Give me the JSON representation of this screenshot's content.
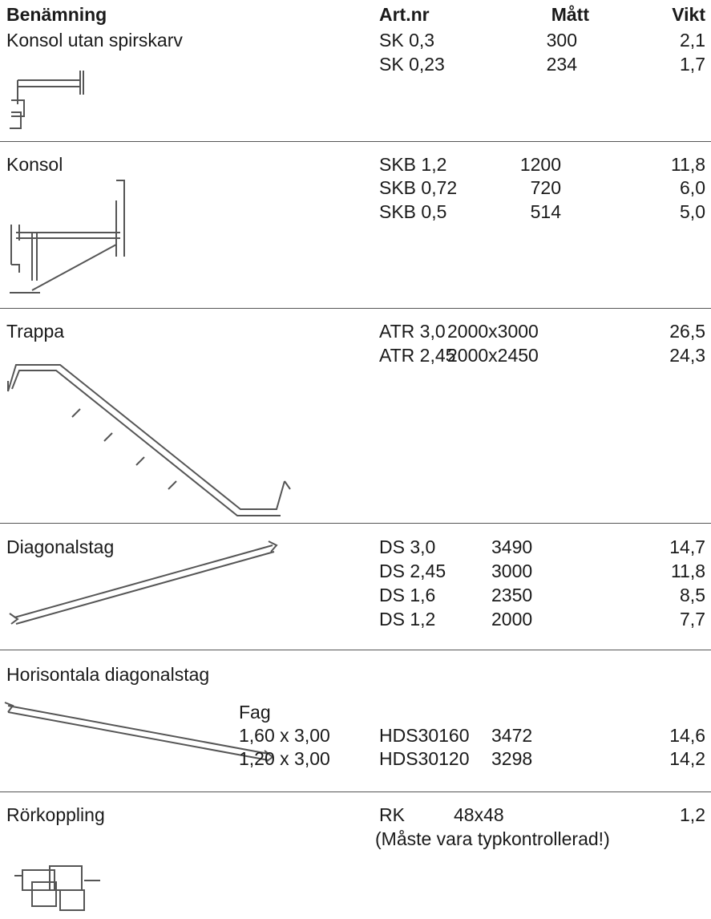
{
  "header": {
    "columns": [
      "Benämning",
      "Art.nr",
      "Mått",
      "Vikt"
    ]
  },
  "sections": [
    {
      "name": "Konsol utan spirskarv",
      "rows": [
        [
          "SK 0,3",
          "300",
          "2,1"
        ],
        [
          "SK 0,23",
          "234",
          "1,7"
        ]
      ]
    },
    {
      "name": "Konsol",
      "rows": [
        [
          "SKB 1,2",
          "1200",
          "11,8"
        ],
        [
          "SKB 0,72",
          "720",
          "6,0"
        ],
        [
          "SKB 0,5",
          "514",
          "5,0"
        ]
      ]
    },
    {
      "name": "Trappa",
      "rows": [
        [
          "ATR 3,0",
          "2000x3000",
          "26,5"
        ],
        [
          "ATR 2,45",
          "2000x2450",
          "24,3"
        ]
      ]
    },
    {
      "name": "Diagonalstag",
      "rows": [
        [
          "DS 3,0",
          "3490",
          "14,7"
        ],
        [
          "DS 2,45",
          "3000",
          "11,8"
        ],
        [
          "DS 1,6",
          "2350",
          "8,5"
        ],
        [
          "DS 1,2",
          "2000",
          "7,7"
        ]
      ]
    },
    {
      "name": "Horisontala diagonalstag",
      "fag_header": "Fag",
      "rows": [
        [
          "1,60 x 3,00",
          "HDS30160",
          "3472",
          "14,6"
        ],
        [
          "1,20 x 3,00",
          "HDS30120",
          "3298",
          "14,2"
        ]
      ]
    },
    {
      "name": "Rörkoppling",
      "rows": [
        [
          "RK",
          "48x48",
          "1,2"
        ]
      ],
      "note": "(Måste vara typkontrollerad!)"
    }
  ]
}
